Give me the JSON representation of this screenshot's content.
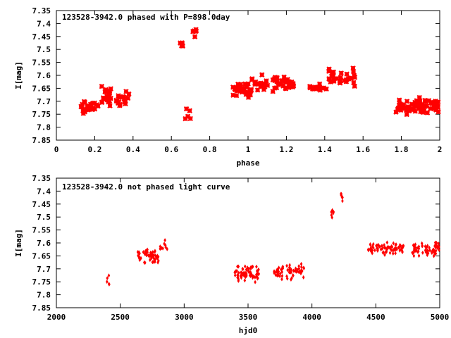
{
  "chart_data": [
    {
      "type": "scatter",
      "title": "123528-3942.0 phased with P=898.0day",
      "xlabel": "phase",
      "ylabel": "I[mag]",
      "xlim": [
        0,
        2
      ],
      "ylim": [
        7.85,
        7.35
      ],
      "y_inverted": true,
      "xticks": [
        "0",
        "0.2",
        "0.4",
        "0.6",
        "0.8",
        "1",
        "1.2",
        "1.4",
        "1.6",
        "1.8",
        "2"
      ],
      "yticks": [
        "7.35",
        "7.4",
        "7.45",
        "7.5",
        "7.55",
        "7.6",
        "7.65",
        "7.7",
        "7.75",
        "7.8",
        "7.85"
      ],
      "grid": false,
      "marker": "cross",
      "color": "#ff0000",
      "clusters": [
        {
          "x_range": [
            0.12,
            0.22
          ],
          "y_mean": 7.72,
          "y_spread": 0.04,
          "n": 28
        },
        {
          "x_range": [
            0.23,
            0.3
          ],
          "y_mean": 7.68,
          "y_spread": 0.05,
          "n": 24
        },
        {
          "x_range": [
            0.31,
            0.38
          ],
          "y_mean": 7.69,
          "y_spread": 0.04,
          "n": 18
        },
        {
          "x_range": [
            0.64,
            0.66
          ],
          "y_mean": 7.48,
          "y_spread": 0.03,
          "n": 6
        },
        {
          "x_range": [
            0.67,
            0.7
          ],
          "y_mean": 7.75,
          "y_spread": 0.03,
          "n": 5
        },
        {
          "x_range": [
            0.71,
            0.73
          ],
          "y_mean": 7.43,
          "y_spread": 0.03,
          "n": 6
        },
        {
          "x_range": [
            0.92,
            1.02
          ],
          "y_mean": 7.66,
          "y_spread": 0.04,
          "n": 35
        },
        {
          "x_range": [
            1.02,
            1.24
          ],
          "y_mean": 7.63,
          "y_spread": 0.04,
          "n": 55
        },
        {
          "x_range": [
            1.32,
            1.42
          ],
          "y_mean": 7.65,
          "y_spread": 0.02,
          "n": 18
        },
        {
          "x_range": [
            1.42,
            1.56
          ],
          "y_mean": 7.61,
          "y_spread": 0.05,
          "n": 32
        },
        {
          "x_range": [
            1.77,
            2.0
          ],
          "y_mean": 7.72,
          "y_spread": 0.04,
          "n": 80
        }
      ]
    },
    {
      "type": "scatter",
      "title": "123528-3942.0 not phased light curve",
      "xlabel": "hjd0",
      "ylabel": "I[mag]",
      "xlim": [
        2000,
        5000
      ],
      "ylim": [
        7.85,
        7.35
      ],
      "y_inverted": true,
      "xticks": [
        "2000",
        "2500",
        "3000",
        "3500",
        "4000",
        "4500",
        "5000"
      ],
      "yticks": [
        "7.35",
        "7.4",
        "7.45",
        "7.5",
        "7.55",
        "7.6",
        "7.65",
        "7.7",
        "7.75",
        "7.8",
        "7.85"
      ],
      "grid": false,
      "marker": "diamond",
      "color": "#ff0000",
      "clusters": [
        {
          "x_range": [
            2395,
            2415
          ],
          "y_mean": 7.75,
          "y_spread": 0.03,
          "n": 5
        },
        {
          "x_range": [
            2630,
            2800
          ],
          "y_mean": 7.65,
          "y_spread": 0.04,
          "n": 55
        },
        {
          "x_range": [
            2800,
            2870
          ],
          "y_mean": 7.62,
          "y_spread": 0.04,
          "n": 10
        },
        {
          "x_range": [
            3390,
            3590
          ],
          "y_mean": 7.72,
          "y_spread": 0.04,
          "n": 70
        },
        {
          "x_range": [
            3700,
            3940
          ],
          "y_mean": 7.71,
          "y_spread": 0.04,
          "n": 60
        },
        {
          "x_range": [
            4150,
            4170
          ],
          "y_mean": 7.48,
          "y_spread": 0.03,
          "n": 6
        },
        {
          "x_range": [
            4220,
            4245
          ],
          "y_mean": 7.42,
          "y_spread": 0.03,
          "n": 6
        },
        {
          "x_range": [
            4440,
            4720
          ],
          "y_mean": 7.62,
          "y_spread": 0.03,
          "n": 70
        },
        {
          "x_range": [
            4780,
            5000
          ],
          "y_mean": 7.62,
          "y_spread": 0.04,
          "n": 60
        }
      ]
    }
  ]
}
